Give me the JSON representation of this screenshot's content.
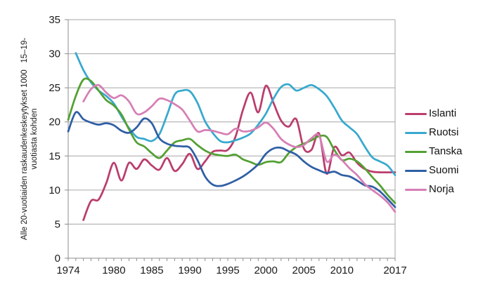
{
  "chart_data": {
    "type": "line",
    "title": "",
    "ylabel_lines": [
      "Alle 20-vuotiaiden raskaudenkeskeytykset 1000   15–19-",
      "vuotiasta kohden"
    ],
    "xlabel": "",
    "x_start": 1974,
    "x_end": 2017,
    "ylim": [
      0,
      35
    ],
    "y_tick_step": 5,
    "y_tick_labels": [
      "0",
      "5",
      "10",
      "15",
      "20",
      "25",
      "30",
      "35"
    ],
    "x_tick_labels": [
      "1974",
      "1980",
      "1985",
      "1990",
      "1995",
      "2000",
      "2005",
      "2010",
      "2017"
    ],
    "x_tick_years": [
      1974,
      1980,
      1985,
      1990,
      1995,
      2000,
      2005,
      2010,
      2017
    ],
    "grid": true,
    "legend_position": "right",
    "axis_color": "#8c8c8c",
    "grid_color": "#a6a6a6",
    "text_color": "#1a1a1a",
    "series": [
      {
        "name": "Islanti",
        "color": "#ba3d6d",
        "start_year": 1976,
        "values": [
          5.6,
          8.4,
          8.6,
          11.0,
          14.0,
          11.4,
          14.0,
          13.1,
          14.5,
          13.6,
          13.0,
          14.7,
          12.8,
          13.8,
          15.3,
          13.1,
          14.2,
          15.6,
          15.8,
          15.9,
          17.8,
          21.8,
          24.3,
          21.4,
          25.3,
          22.8,
          20.2,
          19.3,
          20.4,
          16.1,
          15.9,
          18.3,
          12.4,
          16.3,
          15.1,
          15.5,
          14.0,
          13.1,
          12.7,
          12.6,
          12.6,
          12.6
        ]
      },
      {
        "name": "Ruotsi",
        "color": "#38a9ce",
        "start_year": 1975,
        "values": [
          30.1,
          27.6,
          25.8,
          24.6,
          23.8,
          22.7,
          20.8,
          19.1,
          17.8,
          17.5,
          17.2,
          18.2,
          21.0,
          24.0,
          24.6,
          24.5,
          22.8,
          20.1,
          18.4,
          17.2,
          17.0,
          17.3,
          17.7,
          18.3,
          19.6,
          21.2,
          23.4,
          25.1,
          25.5,
          24.6,
          25.0,
          25.4,
          24.8,
          23.8,
          22.1,
          20.2,
          19.2,
          18.2,
          16.4,
          14.8,
          14.2,
          13.6,
          12.2
        ]
      },
      {
        "name": "Tanska",
        "color": "#53a033",
        "start_year": 1974,
        "values": [
          20.3,
          23.8,
          26.2,
          26.0,
          24.6,
          23.2,
          22.4,
          21.1,
          18.9,
          17.0,
          16.4,
          15.4,
          14.7,
          15.8,
          17.0,
          17.3,
          17.5,
          16.6,
          15.8,
          15.3,
          15.1,
          15.0,
          15.2,
          14.5,
          14.1,
          13.7,
          14.1,
          14.2,
          14.1,
          15.4,
          16.3,
          16.8,
          17.3,
          17.9,
          17.8,
          15.9,
          14.4,
          14.6,
          14.2,
          13.2,
          11.9,
          10.7,
          9.3,
          8.1
        ]
      },
      {
        "name": "Suomi",
        "color": "#2f5fa5",
        "start_year": 1974,
        "values": [
          18.6,
          21.4,
          20.4,
          19.9,
          19.6,
          19.8,
          19.5,
          18.7,
          18.4,
          19.2,
          20.5,
          19.8,
          17.6,
          16.8,
          16.5,
          16.4,
          16.2,
          14.4,
          12.0,
          10.8,
          10.6,
          10.9,
          11.4,
          12.0,
          12.8,
          13.8,
          15.3,
          16.1,
          16.2,
          15.7,
          15.2,
          14.2,
          13.4,
          12.9,
          12.5,
          12.7,
          12.2,
          12.0,
          11.4,
          10.7,
          10.5,
          9.8,
          8.7,
          7.5
        ]
      },
      {
        "name": "Norja",
        "color": "#d67fb5",
        "start_year": 1976,
        "values": [
          23.0,
          24.8,
          25.4,
          24.3,
          23.5,
          23.9,
          23.0,
          21.2,
          21.4,
          22.3,
          23.4,
          23.2,
          22.6,
          21.8,
          20.2,
          18.6,
          18.8,
          18.7,
          18.4,
          18.2,
          19.0,
          18.6,
          18.7,
          19.2,
          19.9,
          19.0,
          17.5,
          16.7,
          16.3,
          16.6,
          17.6,
          18.0,
          14.2,
          15.2,
          14.4,
          13.2,
          12.2,
          10.9,
          10.0,
          9.2,
          8.2,
          6.8
        ]
      }
    ]
  }
}
